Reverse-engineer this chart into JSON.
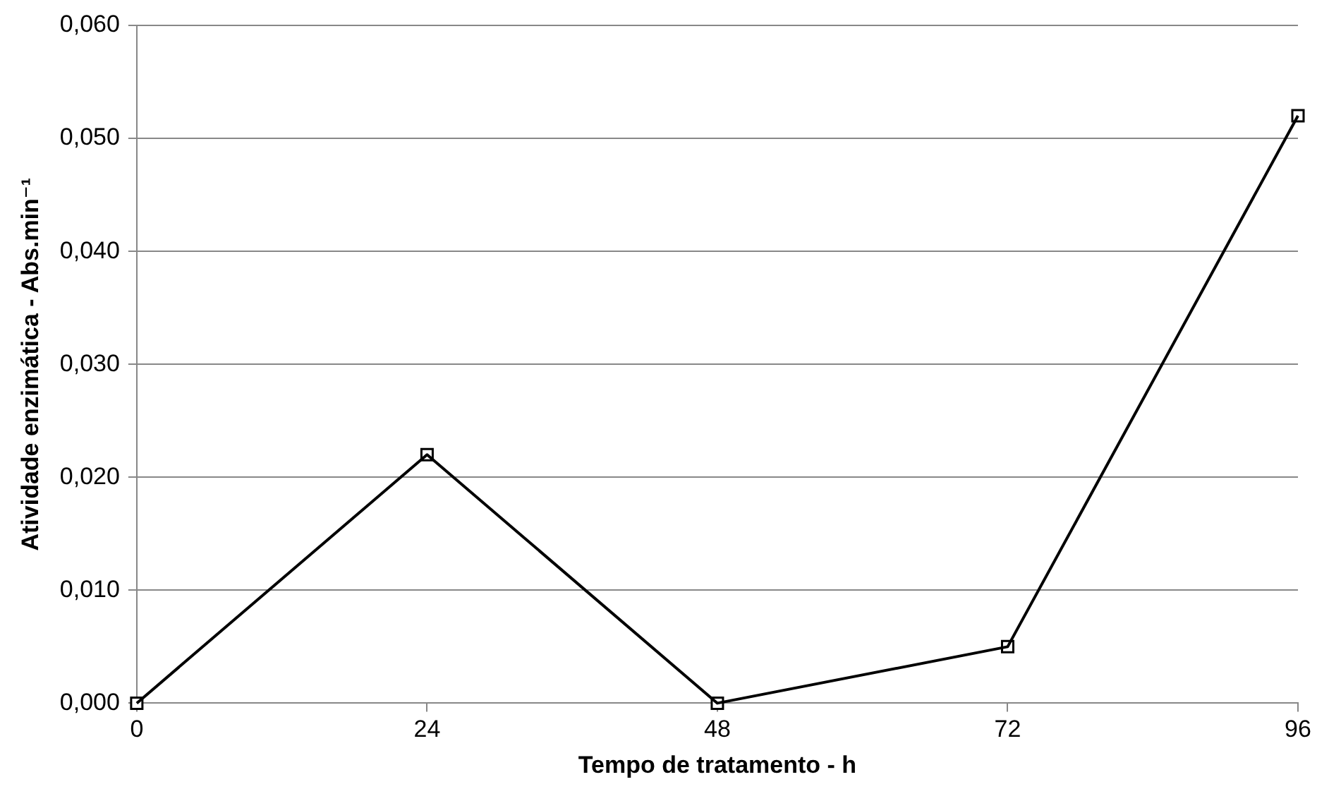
{
  "chart_data": {
    "type": "line",
    "xlabel": "Tempo de tratamento - h",
    "ylabel": "Atividade enzimática - Abs.min⁻¹",
    "x": [
      0,
      24,
      48,
      72,
      96
    ],
    "series": [
      {
        "color": "#000000",
        "values": [
          0,
          0.022,
          0,
          0.005,
          0.052
        ]
      }
    ],
    "xlim": [
      0,
      96
    ],
    "xticks": [
      0,
      24,
      48,
      72,
      96
    ],
    "ylim": [
      0,
      0.06
    ],
    "yticks": [
      {
        "value": 0,
        "label": "0,000"
      },
      {
        "value": 0.01,
        "label": "0,010"
      },
      {
        "value": 0.02,
        "label": "0,020"
      },
      {
        "value": 0.03,
        "label": "0,030"
      },
      {
        "value": 0.04,
        "label": "0,040"
      },
      {
        "value": 0.05,
        "label": "0,050"
      },
      {
        "value": 0.06,
        "label": "0,060"
      }
    ],
    "grid": "y",
    "legend": false,
    "marker": "square",
    "line_style": "solid"
  }
}
